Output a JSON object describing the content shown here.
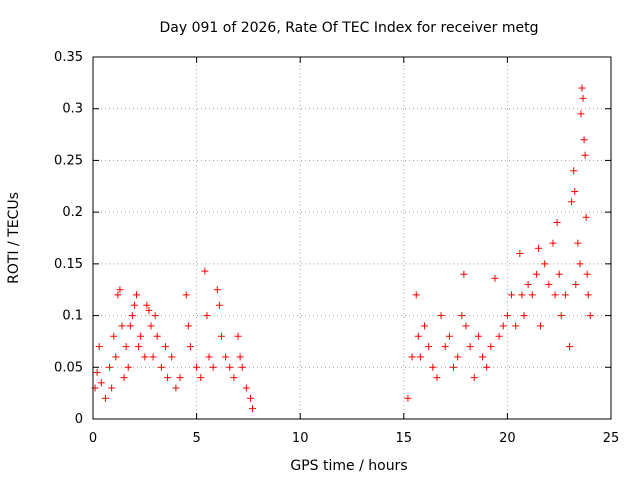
{
  "chart_data": {
    "type": "scatter",
    "title": "Day 091 of 2026, Rate Of TEC Index for receiver metg",
    "xlabel": "GPS time / hours",
    "ylabel": "ROTI / TECUs",
    "xlim": [
      0,
      25
    ],
    "ylim": [
      0,
      0.35
    ],
    "xticks": [
      0,
      5,
      10,
      15,
      20,
      25
    ],
    "xtick_labels": [
      "0",
      "5",
      "10",
      "15",
      "20",
      "25"
    ],
    "yticks": [
      0,
      0.05,
      0.1,
      0.15,
      0.2,
      0.25,
      0.3,
      0.35
    ],
    "ytick_labels": [
      "0",
      "0.05",
      "0.1",
      "0.15",
      "0.2",
      "0.25",
      "0.3",
      "0.35"
    ],
    "grid": true,
    "marker": "plus",
    "color": "#ff0000",
    "series": [
      {
        "points": [
          [
            0.1,
            0.03
          ],
          [
            0.2,
            0.045
          ],
          [
            0.3,
            0.07
          ],
          [
            0.4,
            0.035
          ],
          [
            0.6,
            0.02
          ],
          [
            0.8,
            0.05
          ],
          [
            0.9,
            0.03
          ],
          [
            1.0,
            0.08
          ],
          [
            1.1,
            0.06
          ],
          [
            1.2,
            0.12
          ],
          [
            1.3,
            0.125
          ],
          [
            1.4,
            0.09
          ],
          [
            1.5,
            0.04
          ],
          [
            1.6,
            0.07
          ],
          [
            1.7,
            0.05
          ],
          [
            1.8,
            0.09
          ],
          [
            1.9,
            0.1
          ],
          [
            2.0,
            0.11
          ],
          [
            2.1,
            0.12
          ],
          [
            2.2,
            0.07
          ],
          [
            2.3,
            0.08
          ],
          [
            2.5,
            0.06
          ],
          [
            2.6,
            0.11
          ],
          [
            2.7,
            0.105
          ],
          [
            2.8,
            0.09
          ],
          [
            2.9,
            0.06
          ],
          [
            3.0,
            0.1
          ],
          [
            3.1,
            0.08
          ],
          [
            3.3,
            0.05
          ],
          [
            3.5,
            0.07
          ],
          [
            3.6,
            0.04
          ],
          [
            3.8,
            0.06
          ],
          [
            4.0,
            0.03
          ],
          [
            4.2,
            0.04
          ],
          [
            4.5,
            0.12
          ],
          [
            4.6,
            0.09
          ],
          [
            4.7,
            0.07
          ],
          [
            5.0,
            0.05
          ],
          [
            5.2,
            0.04
          ],
          [
            5.4,
            0.143
          ],
          [
            5.5,
            0.1
          ],
          [
            5.6,
            0.06
          ],
          [
            5.8,
            0.05
          ],
          [
            6.0,
            0.125
          ],
          [
            6.1,
            0.11
          ],
          [
            6.2,
            0.08
          ],
          [
            6.4,
            0.06
          ],
          [
            6.6,
            0.05
          ],
          [
            6.8,
            0.04
          ],
          [
            7.0,
            0.08
          ],
          [
            7.1,
            0.06
          ],
          [
            7.2,
            0.05
          ],
          [
            7.4,
            0.03
          ],
          [
            7.6,
            0.02
          ],
          [
            7.7,
            0.01
          ],
          [
            15.2,
            0.02
          ],
          [
            15.4,
            0.06
          ],
          [
            15.6,
            0.12
          ],
          [
            15.7,
            0.08
          ],
          [
            15.8,
            0.06
          ],
          [
            16.0,
            0.09
          ],
          [
            16.2,
            0.07
          ],
          [
            16.4,
            0.05
          ],
          [
            16.6,
            0.04
          ],
          [
            16.8,
            0.1
          ],
          [
            17.0,
            0.07
          ],
          [
            17.2,
            0.08
          ],
          [
            17.4,
            0.05
          ],
          [
            17.6,
            0.06
          ],
          [
            17.8,
            0.1
          ],
          [
            17.9,
            0.14
          ],
          [
            18.0,
            0.09
          ],
          [
            18.2,
            0.07
          ],
          [
            18.4,
            0.04
          ],
          [
            18.6,
            0.08
          ],
          [
            18.8,
            0.06
          ],
          [
            19.0,
            0.05
          ],
          [
            19.2,
            0.07
          ],
          [
            19.4,
            0.136
          ],
          [
            19.6,
            0.08
          ],
          [
            19.8,
            0.09
          ],
          [
            20.0,
            0.1
          ],
          [
            20.2,
            0.12
          ],
          [
            20.4,
            0.09
          ],
          [
            20.6,
            0.16
          ],
          [
            20.7,
            0.12
          ],
          [
            20.8,
            0.1
          ],
          [
            21.0,
            0.13
          ],
          [
            21.2,
            0.12
          ],
          [
            21.4,
            0.14
          ],
          [
            21.5,
            0.165
          ],
          [
            21.6,
            0.09
          ],
          [
            21.8,
            0.15
          ],
          [
            22.0,
            0.13
          ],
          [
            22.2,
            0.17
          ],
          [
            22.3,
            0.12
          ],
          [
            22.4,
            0.19
          ],
          [
            22.5,
            0.14
          ],
          [
            22.6,
            0.1
          ],
          [
            22.8,
            0.12
          ],
          [
            23.0,
            0.07
          ],
          [
            23.1,
            0.21
          ],
          [
            23.2,
            0.24
          ],
          [
            23.25,
            0.22
          ],
          [
            23.3,
            0.13
          ],
          [
            23.4,
            0.17
          ],
          [
            23.5,
            0.15
          ],
          [
            23.55,
            0.295
          ],
          [
            23.6,
            0.32
          ],
          [
            23.65,
            0.31
          ],
          [
            23.7,
            0.27
          ],
          [
            23.75,
            0.255
          ],
          [
            23.8,
            0.195
          ],
          [
            23.85,
            0.14
          ],
          [
            23.9,
            0.12
          ],
          [
            24.0,
            0.1
          ]
        ]
      }
    ]
  }
}
